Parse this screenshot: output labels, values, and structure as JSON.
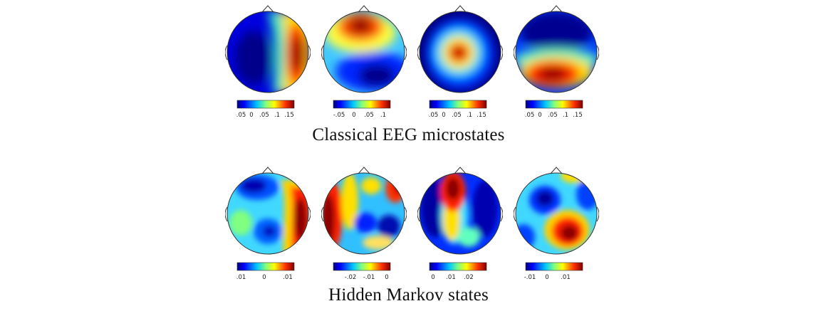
{
  "sections": [
    {
      "title": "Classical EEG microstates",
      "maps": [
        {
          "colorbar_ticks": [
            "-.05",
            "0",
            ".05",
            ".1",
            ".15"
          ]
        },
        {
          "colorbar_ticks": [
            "-.05",
            "0",
            ".05",
            ".1"
          ]
        },
        {
          "colorbar_ticks": [
            "-.05",
            "0",
            ".05",
            ".1",
            ".15"
          ]
        },
        {
          "colorbar_ticks": [
            "-.05",
            "0",
            ".05",
            ".1",
            ".15"
          ]
        }
      ]
    },
    {
      "title": "Hidden Markov states",
      "maps": [
        {
          "colorbar_ticks": [
            "-.01",
            "0",
            ".01"
          ]
        },
        {
          "colorbar_ticks": [
            "-.02",
            "-.01",
            "0"
          ]
        },
        {
          "colorbar_ticks": [
            "0",
            ".01",
            ".02"
          ]
        },
        {
          "colorbar_ticks": [
            "-.01",
            "0",
            ".01"
          ]
        }
      ]
    }
  ],
  "colormap": [
    "#00007f",
    "#0000ff",
    "#0080ff",
    "#00ffff",
    "#80ff80",
    "#ffff00",
    "#ff8000",
    "#ff0000",
    "#7f0000"
  ]
}
